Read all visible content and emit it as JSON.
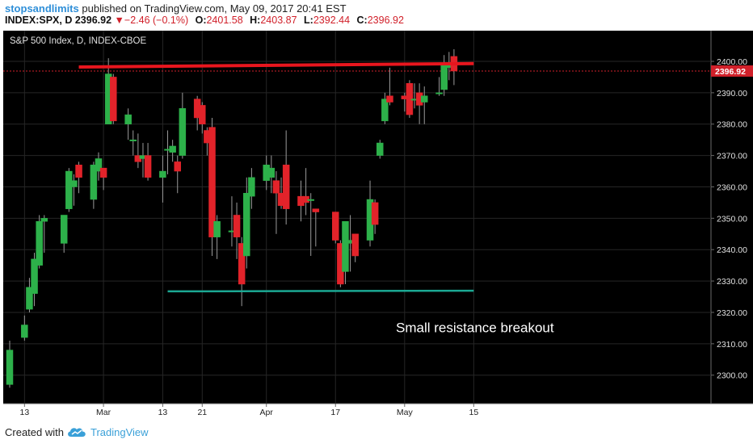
{
  "header": {
    "author": "stopsandlimits",
    "published_text": "published on TradingView.com, May 09, 2017 20:41 EST",
    "symbol": "INDEX:SPX, D",
    "last_price": "2396.92",
    "change_arrow": "▼",
    "change_text": "−2.46 (−0.1%)",
    "o_label": "O:",
    "o_value": "2401.58",
    "h_label": "H:",
    "h_value": "2403.87",
    "l_label": "L:",
    "l_value": "2392.44",
    "c_label": "C:",
    "c_value": "2396.92"
  },
  "footer": {
    "created_with": "Created with",
    "brand": "TradingView"
  },
  "colors": {
    "background": "#000000",
    "up": "#2db14a",
    "down": "#e2232a",
    "resistance": "#e8161e",
    "support": "#1ba893",
    "price_tag": "#d1202a",
    "axis_text": "#e0e0e0"
  },
  "chart_data": {
    "type": "candlestick",
    "title": "S&P 500 Index, D, INDEX-CBOE",
    "ylim": [
      2290,
      2405
    ],
    "grid": true,
    "y_ticks": [
      "2300.00",
      "2310.00",
      "2320.00",
      "2330.00",
      "2340.00",
      "2350.00",
      "2360.00",
      "2370.00",
      "2380.00",
      "2390.00",
      "2400.00"
    ],
    "x_ticks": [
      {
        "date": "2017-02-13",
        "label": "13"
      },
      {
        "date": "2017-03-01",
        "label": "Mar"
      },
      {
        "date": "2017-03-13",
        "label": "13"
      },
      {
        "date": "2017-03-21",
        "label": "21"
      },
      {
        "date": "2017-04-03",
        "label": "Apr"
      },
      {
        "date": "2017-04-17",
        "label": "17"
      },
      {
        "date": "2017-05-01",
        "label": "May"
      },
      {
        "date": "2017-05-15",
        "label": "15"
      }
    ],
    "last_price_tag": "2396.92",
    "candles": [
      {
        "date": "2017-02-10",
        "open": 2297.0,
        "high": 2311.0,
        "low": 2296.0,
        "close": 2308.0
      },
      {
        "date": "2017-02-13",
        "open": 2312.0,
        "high": 2319.0,
        "low": 2311.0,
        "close": 2316.0
      },
      {
        "date": "2017-02-14",
        "open": 2321.0,
        "high": 2331.0,
        "low": 2320.0,
        "close": 2328.0
      },
      {
        "date": "2017-02-15",
        "open": 2326.0,
        "high": 2339.0,
        "low": 2322.0,
        "close": 2337.0
      },
      {
        "date": "2017-02-16",
        "open": 2335.0,
        "high": 2351.0,
        "low": 2334.0,
        "close": 2349.0
      },
      {
        "date": "2017-02-17",
        "open": 2349.0,
        "high": 2351.0,
        "low": 2339.0,
        "close": 2350.0
      },
      {
        "date": "2017-02-21",
        "open": 2342.0,
        "high": 2351.0,
        "low": 2339.0,
        "close": 2351.0
      },
      {
        "date": "2017-02-22",
        "open": 2353.0,
        "high": 2366.0,
        "low": 2352.0,
        "close": 2365.0
      },
      {
        "date": "2017-02-23",
        "open": 2360.0,
        "high": 2364.0,
        "low": 2354.0,
        "close": 2362.0
      },
      {
        "date": "2017-02-24",
        "open": 2367.0,
        "high": 2368.0,
        "low": 2358.0,
        "close": 2363.0
      },
      {
        "date": "2017-02-27",
        "open": 2356.0,
        "high": 2368.0,
        "low": 2353.0,
        "close": 2367.0
      },
      {
        "date": "2017-02-28",
        "open": 2365.0,
        "high": 2371.0,
        "low": 2362.0,
        "close": 2369.0
      },
      {
        "date": "2017-03-01",
        "open": 2366.0,
        "high": 2366.0,
        "low": 2359.0,
        "close": 2363.0
      },
      {
        "date": "2017-03-02",
        "open": 2380.0,
        "high": 2401.0,
        "low": 2380.0,
        "close": 2396.0
      },
      {
        "date": "2017-03-03",
        "open": 2395.0,
        "high": 2396.0,
        "low": 2380.0,
        "close": 2381.0
      },
      {
        "date": "2017-03-06",
        "open": 2380.0,
        "high": 2385.0,
        "low": 2375.0,
        "close": 2383.0
      },
      {
        "date": "2017-03-07",
        "open": 2375.0,
        "high": 2378.0,
        "low": 2370.0,
        "close": 2375.0
      },
      {
        "date": "2017-03-08",
        "open": 2370.0,
        "high": 2377.0,
        "low": 2366.0,
        "close": 2368.0
      },
      {
        "date": "2017-03-09",
        "open": 2369.0,
        "high": 2374.0,
        "low": 2363.0,
        "close": 2370.0
      },
      {
        "date": "2017-03-10",
        "open": 2370.0,
        "high": 2374.0,
        "low": 2362.0,
        "close": 2363.0
      },
      {
        "date": "2017-03-13",
        "open": 2363.0,
        "high": 2370.0,
        "low": 2355.0,
        "close": 2365.0
      },
      {
        "date": "2017-03-14",
        "open": 2372.0,
        "high": 2378.0,
        "low": 2364.0,
        "close": 2372.0
      },
      {
        "date": "2017-03-15",
        "open": 2371.0,
        "high": 2375.0,
        "low": 2368.0,
        "close": 2373.0
      },
      {
        "date": "2017-03-16",
        "open": 2368.0,
        "high": 2370.0,
        "low": 2358.0,
        "close": 2365.0
      },
      {
        "date": "2017-03-17",
        "open": 2370.0,
        "high": 2390.0,
        "low": 2369.0,
        "close": 2385.0
      },
      {
        "date": "2017-03-20",
        "open": 2388.0,
        "high": 2389.0,
        "low": 2378.0,
        "close": 2382.0
      },
      {
        "date": "2017-03-21",
        "open": 2386.0,
        "high": 2387.0,
        "low": 2377.0,
        "close": 2380.0
      },
      {
        "date": "2017-03-22",
        "open": 2378.0,
        "high": 2379.0,
        "low": 2370.0,
        "close": 2374.0
      },
      {
        "date": "2017-03-23",
        "open": 2379.0,
        "high": 2382.0,
        "low": 2338.0,
        "close": 2344.0
      },
      {
        "date": "2017-03-24",
        "open": 2344.0,
        "high": 2351.0,
        "low": 2337.0,
        "close": 2349.0
      },
      {
        "date": "2017-03-27",
        "open": 2346.0,
        "high": 2357.0,
        "low": 2341.0,
        "close": 2346.0
      },
      {
        "date": "2017-03-28",
        "open": 2351.0,
        "high": 2355.0,
        "low": 2337.0,
        "close": 2344.0
      },
      {
        "date": "2017-03-29",
        "open": 2342.0,
        "high": 2344.0,
        "low": 2322.0,
        "close": 2329.0
      },
      {
        "date": "2017-03-30",
        "open": 2338.0,
        "high": 2363.0,
        "low": 2334.0,
        "close": 2358.0
      },
      {
        "date": "2017-03-31",
        "open": 2357.0,
        "high": 2366.0,
        "low": 2353.0,
        "close": 2363.0
      },
      {
        "date": "2017-04-03",
        "open": 2362.0,
        "high": 2370.0,
        "low": 2359.0,
        "close": 2367.0
      },
      {
        "date": "2017-04-04",
        "open": 2363.0,
        "high": 2370.0,
        "low": 2358.0,
        "close": 2366.0
      },
      {
        "date": "2017-04-05",
        "open": 2362.0,
        "high": 2365.0,
        "low": 2345.0,
        "close": 2358.0
      },
      {
        "date": "2017-04-06",
        "open": 2358.0,
        "high": 2363.0,
        "low": 2353.0,
        "close": 2354.0
      },
      {
        "date": "2017-04-07",
        "open": 2367.0,
        "high": 2378.0,
        "low": 2348.0,
        "close": 2353.0
      },
      {
        "date": "2017-04-10",
        "open": 2357.0,
        "high": 2362.0,
        "low": 2349.0,
        "close": 2354.0
      },
      {
        "date": "2017-04-11",
        "open": 2357.0,
        "high": 2366.0,
        "low": 2351.0,
        "close": 2355.0
      },
      {
        "date": "2017-04-12",
        "open": 2356.0,
        "high": 2358.0,
        "low": 2338.0,
        "close": 2356.0
      },
      {
        "date": "2017-04-13",
        "open": 2353.0,
        "high": 2353.0,
        "low": 2341.0,
        "close": 2352.0
      },
      {
        "date": "2017-04-17",
        "open": 2352.0,
        "high": 2352.0,
        "low": 2342.0,
        "close": 2343.0
      },
      {
        "date": "2017-04-18",
        "open": 2342.0,
        "high": 2343.0,
        "low": 2328.0,
        "close": 2329.0
      },
      {
        "date": "2017-04-19",
        "open": 2333.0,
        "high": 2348.0,
        "low": 2329.0,
        "close": 2349.0
      },
      {
        "date": "2017-04-20",
        "open": 2342.0,
        "high": 2351.0,
        "low": 2333.0,
        "close": 2343.0
      },
      {
        "date": "2017-04-21",
        "open": 2345.0,
        "high": 2345.0,
        "low": 2336.0,
        "close": 2338.0
      },
      {
        "date": "2017-04-24",
        "open": 2343.0,
        "high": 2362.0,
        "low": 2341.0,
        "close": 2356.0
      },
      {
        "date": "2017-04-25",
        "open": 2355.0,
        "high": 2356.0,
        "low": 2345.0,
        "close": 2348.0
      },
      {
        "date": "2017-04-26",
        "open": 2370.0,
        "high": 2375.0,
        "low": 2369.0,
        "close": 2374.0
      },
      {
        "date": "2017-04-27",
        "open": 2381.0,
        "high": 2390.0,
        "low": 2380.0,
        "close": 2388.0
      },
      {
        "date": "2017-04-28",
        "open": 2389.0,
        "high": 2398.0,
        "low": 2386.0,
        "close": 2387.0
      },
      {
        "date": "2017-05-01",
        "open": 2389.0,
        "high": 2390.0,
        "low": 2384.0,
        "close": 2388.0
      },
      {
        "date": "2017-05-02",
        "open": 2393.0,
        "high": 2394.0,
        "low": 2382.0,
        "close": 2383.0
      },
      {
        "date": "2017-05-03",
        "open": 2388.0,
        "high": 2393.0,
        "low": 2385.0,
        "close": 2388.0
      },
      {
        "date": "2017-05-04",
        "open": 2390.0,
        "high": 2393.0,
        "low": 2380.0,
        "close": 2386.0
      },
      {
        "date": "2017-05-05",
        "open": 2387.0,
        "high": 2392.0,
        "low": 2380.0,
        "close": 2389.0
      },
      {
        "date": "2017-05-08",
        "open": 2390.0,
        "high": 2395.0,
        "low": 2389.0,
        "close": 2390.0
      },
      {
        "date": "2017-05-09",
        "open": 2391.0,
        "high": 2402.0,
        "low": 2389.0,
        "close": 2399.0
      },
      {
        "date": "2017-05-10",
        "open": 2398.0,
        "high": 2403.0,
        "low": 2394.0,
        "close": 2399.0
      },
      {
        "date": "2017-05-11",
        "open": 2401.58,
        "high": 2403.87,
        "low": 2392.44,
        "close": 2396.92
      }
    ],
    "lines": [
      {
        "name": "resistance",
        "start": {
          "date": "2017-02-24",
          "value": 2398.2
        },
        "end": {
          "date": "2017-05-15",
          "value": 2399.3
        }
      },
      {
        "name": "support",
        "start": {
          "date": "2017-03-14",
          "value": 2326.7
        },
        "end": {
          "date": "2017-05-15",
          "value": 2326.9
        }
      }
    ],
    "annotations": [
      {
        "text": "Small resistance breakout",
        "date": "2017-04-24",
        "value": 2315.0
      }
    ]
  }
}
